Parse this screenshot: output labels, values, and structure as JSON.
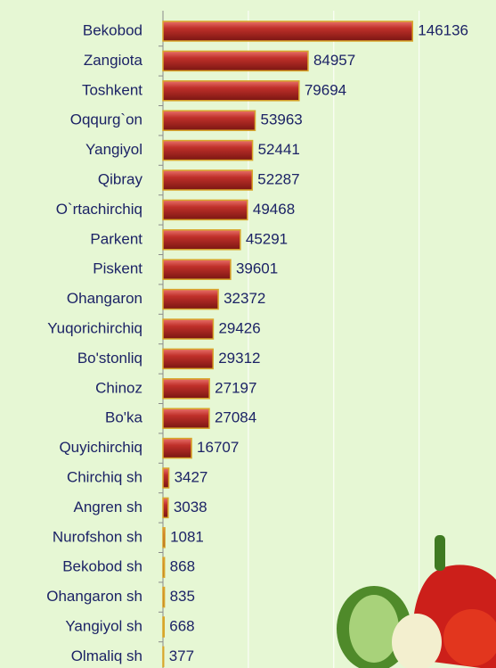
{
  "chart_data": {
    "type": "bar",
    "orientation": "horizontal",
    "categories": [
      "Bekobod",
      "Zangiota",
      "Toshkent",
      "Oqqurg`on",
      "Yangiyol",
      "Qibray",
      "O`rtachirchiq",
      "Parkent",
      "Piskent",
      "Ohangaron",
      "Yuqorichirchiq",
      "Bo'stonliq",
      "Chinoz",
      "Bo'ka",
      "Quyichirchiq",
      "Chirchiq sh",
      "Angren sh",
      "Nurofshon sh",
      "Bekobod sh",
      "Ohangaron sh",
      "Yangiyol sh",
      "Olmaliq sh"
    ],
    "values": [
      146136,
      84957,
      79694,
      53963,
      52441,
      52287,
      49468,
      45291,
      39601,
      32372,
      29426,
      29312,
      27197,
      27084,
      16707,
      3427,
      3038,
      1081,
      868,
      835,
      668,
      377
    ],
    "color": "#c0302a",
    "xlim": [
      0,
      195000
    ],
    "xticks": [
      0,
      50000,
      100000,
      150000
    ],
    "grid": true
  }
}
